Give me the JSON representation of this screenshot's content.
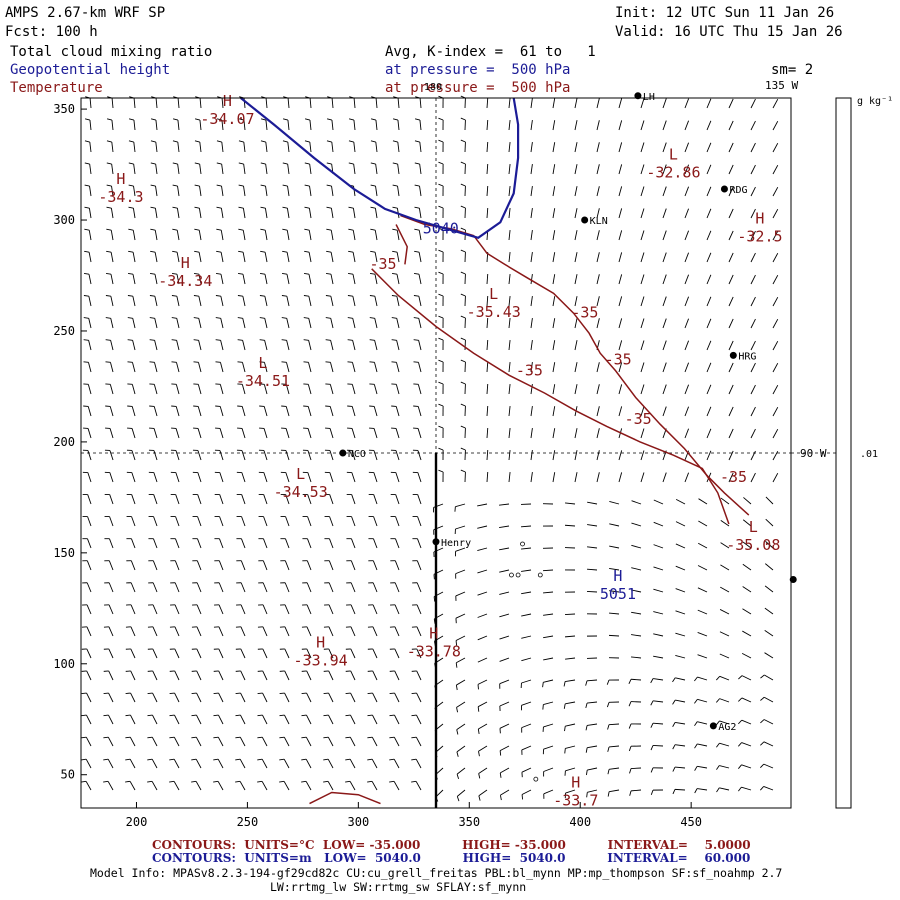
{
  "header": {
    "model": "AMPS 2.67-km WRF SP",
    "forecast": "Fcst: 100 h",
    "init": "Init: 12 UTC Sun 11 Jan 26",
    "valid": "Valid: 16 UTC Thu 15 Jan 26",
    "field1": "Total cloud mixing ratio",
    "field2": "Geopotential height",
    "field3": "Temperature",
    "avg": "Avg, K-index =  61 to   1",
    "pressure1": "at pressure =  500 hPa",
    "pressure2": "at pressure =  500 hPa",
    "smoothing": "sm= 2",
    "units": "g kg⁻¹"
  },
  "colors": {
    "temperature": "#8a1818",
    "height": "#1c1c96",
    "text": "#000000"
  },
  "chart_data": {
    "type": "contour_map",
    "xlim": [
      175,
      495
    ],
    "ylim": [
      35,
      355
    ],
    "x_ticks": [
      200,
      250,
      300,
      350,
      400,
      450
    ],
    "y_ticks": [
      50,
      100,
      150,
      200,
      250,
      300,
      350
    ],
    "meridian_labels": [
      "180",
      "135 W",
      "90 W"
    ],
    "colorbar_labels": [
      ".01"
    ],
    "stations": [
      {
        "name": "LH",
        "x": 426,
        "y": 356
      },
      {
        "name": "RDG",
        "x": 465,
        "y": 314
      },
      {
        "name": "KLN",
        "x": 402,
        "y": 300
      },
      {
        "name": "HRG",
        "x": 469,
        "y": 239
      },
      {
        "name": "NCO",
        "x": 293,
        "y": 195
      },
      {
        "name": "Henry",
        "x": 335,
        "y": 155
      },
      {
        "name": "AG2",
        "x": 460,
        "y": 72
      },
      {
        "name": "",
        "x": 496,
        "y": 138
      }
    ],
    "temperature_contours": [
      {
        "label": "-35",
        "label_positions": [
          [
            305,
            278
          ],
          [
            396,
            256
          ],
          [
            411,
            235
          ],
          [
            371,
            230
          ],
          [
            420,
            208
          ],
          [
            463,
            182
          ]
        ],
        "points": [
          [
            319,
            302
          ],
          [
            330,
            298
          ],
          [
            342,
            296
          ],
          [
            352,
            293
          ],
          [
            358,
            285
          ],
          [
            366,
            280
          ],
          [
            376,
            274
          ],
          [
            388,
            267
          ],
          [
            397,
            258
          ],
          [
            404,
            249
          ],
          [
            409,
            240
          ],
          [
            416,
            232
          ],
          [
            425,
            220
          ],
          [
            436,
            208
          ],
          [
            447,
            197
          ],
          [
            457,
            185
          ],
          [
            465,
            177
          ],
          [
            476,
            167
          ]
        ]
      },
      {
        "label": "-35",
        "label_positions": [],
        "points": [
          [
            306,
            278
          ],
          [
            318,
            266
          ],
          [
            335,
            252
          ],
          [
            352,
            240
          ],
          [
            368,
            230
          ],
          [
            384,
            222
          ],
          [
            398,
            214
          ],
          [
            412,
            207
          ],
          [
            427,
            200
          ],
          [
            442,
            194
          ],
          [
            455,
            188
          ],
          [
            462,
            177
          ],
          [
            467,
            163
          ]
        ]
      },
      {
        "label": "",
        "label_positions": [],
        "points": [
          [
            317,
            298
          ],
          [
            322,
            288
          ],
          [
            321,
            280
          ]
        ]
      },
      {
        "label": "",
        "label_positions": [],
        "points": [
          [
            278,
            37
          ],
          [
            288,
            42
          ],
          [
            300,
            41
          ],
          [
            310,
            37
          ]
        ]
      }
    ],
    "height_contours": [
      {
        "label": "5040",
        "label_positions": [
          [
            329,
            294
          ]
        ],
        "points": [
          [
            247,
            355
          ],
          [
            262,
            343
          ],
          [
            280,
            328
          ],
          [
            298,
            314
          ],
          [
            312,
            305
          ],
          [
            326,
            300
          ],
          [
            340,
            296
          ],
          [
            354,
            292
          ],
          [
            364,
            299
          ],
          [
            370,
            312
          ],
          [
            372,
            328
          ],
          [
            372,
            343
          ],
          [
            370,
            355
          ]
        ]
      }
    ],
    "extrema": [
      {
        "type": "H",
        "value": "-34.07",
        "x": 241,
        "y": 350
      },
      {
        "type": "H",
        "value": "-34.3",
        "x": 193,
        "y": 315
      },
      {
        "type": "H",
        "value": "-34.34",
        "x": 222,
        "y": 277
      },
      {
        "type": "L",
        "value": "-32.86",
        "x": 442,
        "y": 326
      },
      {
        "type": "H",
        "value": "-32.5",
        "x": 481,
        "y": 297
      },
      {
        "type": "L",
        "value": "-35.43",
        "x": 361,
        "y": 263
      },
      {
        "type": "L",
        "value": "-34.51",
        "x": 257,
        "y": 232
      },
      {
        "type": "L",
        "value": "-34.53",
        "x": 274,
        "y": 182
      },
      {
        "type": "L",
        "value": "-35.08",
        "x": 478,
        "y": 158
      },
      {
        "type": "H",
        "value": "5051",
        "x": 417,
        "y": 136
      },
      {
        "type": "H",
        "value": "-33.94",
        "x": 283,
        "y": 106
      },
      {
        "type": "H",
        "value": "-33.78",
        "x": 334,
        "y": 110
      },
      {
        "type": "H",
        "value": "-33.7",
        "x": 398,
        "y": 43
      }
    ],
    "wind_barbs": "regular grid over plot area",
    "cloud_markers": [
      [
        374,
        154
      ],
      [
        369,
        140
      ],
      [
        372,
        140
      ],
      [
        382,
        140
      ],
      [
        380,
        48
      ]
    ],
    "footer": {
      "line1": "CONTOURS:  UNITS=°C  LOW= -35.000          HIGH= -35.000          INTERVAL=    5.0000",
      "line2": "CONTOURS:  UNITS=m   LOW=  5040.0          HIGH=  5040.0          INTERVAL=    60.000"
    }
  },
  "model_info": {
    "line1": "Model Info: MPASv8.2.3-194-gf29cd82c CU:cu_grell_freitas PBL:bl_mynn MP:mp_thompson SF:sf_noahmp 2.7",
    "line2": "LW:rrtmg_lw SW:rrtmg_sw SFLAY:sf_mynn"
  }
}
